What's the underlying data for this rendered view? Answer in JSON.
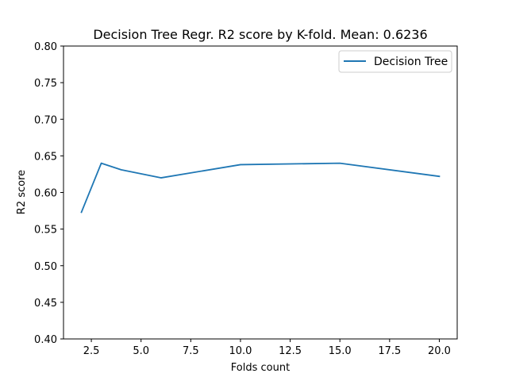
{
  "chart_data": {
    "type": "line",
    "title": "Decision Tree Regr. R2 score by K-fold. Mean: 0.6236",
    "xlabel": "Folds count",
    "ylabel": "R2 score",
    "xlim": [
      1.1,
      20.9
    ],
    "ylim": [
      0.4,
      0.8
    ],
    "x_ticks": [
      2.5,
      5.0,
      7.5,
      10.0,
      12.5,
      15.0,
      17.5,
      20.0
    ],
    "x_tick_labels": [
      "2.5",
      "5.0",
      "7.5",
      "10.0",
      "12.5",
      "15.0",
      "17.5",
      "20.0"
    ],
    "y_ticks": [
      0.4,
      0.45,
      0.5,
      0.55,
      0.6,
      0.65,
      0.7,
      0.75,
      0.8
    ],
    "y_tick_labels": [
      "0.40",
      "0.45",
      "0.50",
      "0.55",
      "0.60",
      "0.65",
      "0.70",
      "0.75",
      "0.80"
    ],
    "grid": false,
    "legend_position": "top-right",
    "series": [
      {
        "name": "Decision Tree",
        "color": "#1f77b4",
        "x": [
          2,
          3,
          4,
          6,
          10,
          15,
          20
        ],
        "y": [
          0.573,
          0.64,
          0.631,
          0.62,
          0.638,
          0.64,
          0.622
        ]
      }
    ]
  }
}
